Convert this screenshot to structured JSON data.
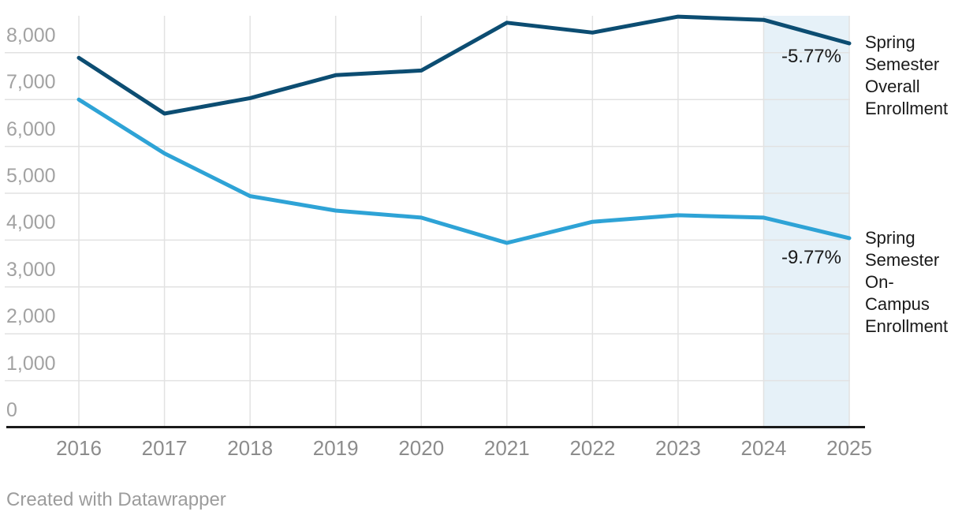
{
  "chart_data": {
    "type": "line",
    "title": "",
    "x": [
      "2016",
      "2017",
      "2018",
      "2019",
      "2020",
      "2021",
      "2022",
      "2023",
      "2024",
      "2025"
    ],
    "series": [
      {
        "name": "Spring Semester Overall Enrollment",
        "color": "#0c4d72",
        "values": [
          7890,
          6700,
          7030,
          7520,
          7620,
          8640,
          8430,
          8770,
          8700,
          8198
        ],
        "end_annotation": "-5.77%"
      },
      {
        "name": "Spring Semester On-Campus Enrollment",
        "color": "#2ea3d6",
        "values": [
          7000,
          5850,
          4940,
          4630,
          4480,
          3940,
          4390,
          4530,
          4480,
          4042
        ],
        "end_annotation": "-9.77%"
      }
    ],
    "ylim": [
      0,
      8950
    ],
    "yticks": [
      {
        "value": 0,
        "label": "0"
      },
      {
        "value": 1000,
        "label": "1,000"
      },
      {
        "value": 2000,
        "label": "2,000"
      },
      {
        "value": 3000,
        "label": "3,000"
      },
      {
        "value": 4000,
        "label": "4,000"
      },
      {
        "value": 5000,
        "label": "5,000"
      },
      {
        "value": 6000,
        "label": "6,000"
      },
      {
        "value": 7000,
        "label": "7,000"
      },
      {
        "value": 8000,
        "label": "8,000"
      }
    ],
    "grid": true,
    "legend_position": "right-of-line-end",
    "highlight_region": {
      "from": "2024",
      "to": "2025",
      "color": "#e6f1f8"
    }
  },
  "annotations": {
    "overall_change": "-5.77%",
    "oncampus_change": "-9.77%"
  },
  "line_labels": {
    "overall": "Spring\nSemester\nOverall\nEnrollment",
    "oncampus": "Spring\nSemester\nOn-\nCampus\nEnrollment"
  },
  "footer": {
    "credit": "Created with Datawrapper"
  },
  "colors": {
    "overall_line": "#0c4d72",
    "oncampus_line": "#2ea3d6",
    "highlight_band": "#e6f1f8",
    "gridline": "#e2e2e2",
    "axis_line": "#1a1a1a",
    "ytick_text": "#a2a2a2",
    "xtick_text": "#8c8c8c",
    "annotation_text": "#1a1a1a",
    "footer_text": "#9c9c9c"
  }
}
